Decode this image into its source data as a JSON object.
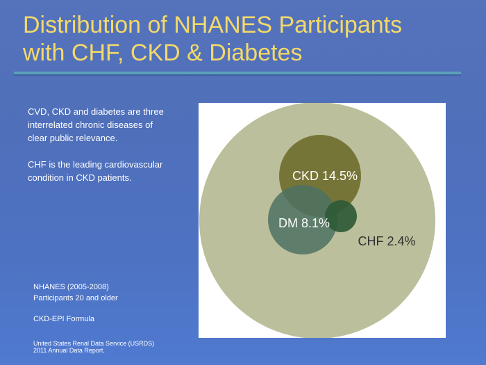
{
  "slide": {
    "title_lines": [
      "Distribution of NHANES Participants",
      "with CHF, CKD & Diabetes"
    ],
    "body": [
      "CVD, CKD and diabetes  are three interrelated chronic diseases of clear public relevance.",
      "CHF is the leading cardiovascular condition in CKD patients."
    ],
    "notes": [
      "NHANES (2005-2008)",
      "Participants 20 and older",
      "CKD-EPI Formula"
    ],
    "source": [
      "United States Renal Data Service (USRDS)",
      "2011 Annual Data Report."
    ]
  },
  "diagram": {
    "type": "venn",
    "sets": [
      {
        "label": "CKD 14.5%",
        "name": "CKD",
        "percent": 14.5,
        "color": "#6b6b2a"
      },
      {
        "label": "DM 8.1%",
        "name": "DM",
        "percent": 8.1,
        "color": "#4e7262"
      },
      {
        "label": "CHF 2.4%",
        "name": "CHF",
        "percent": 2.4,
        "color": "#2f5a36"
      }
    ],
    "population_color": "#bcbf9b"
  }
}
